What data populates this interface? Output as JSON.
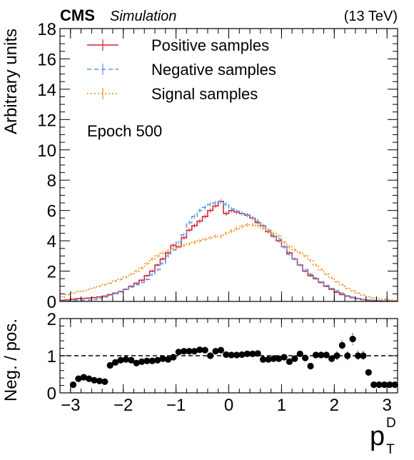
{
  "header": {
    "experiment": "CMS",
    "tag": "Simulation",
    "energy": "(13 TeV)"
  },
  "annotation": "Epoch 500",
  "colors": {
    "positive": "#d62435",
    "negative": "#5b95e0",
    "signal": "#f08a12",
    "ratio_points": "#000000",
    "ratio_errors": "#5b95e0"
  },
  "chart_data": [
    {
      "type": "line",
      "style": "step-histogram",
      "ylabel": "Arbitrary units",
      "xlim": [
        -3.2,
        3.2
      ],
      "ylim": [
        0,
        18
      ],
      "yticks": [
        "0",
        "2",
        "4",
        "6",
        "8",
        "10",
        "12",
        "14",
        "16",
        "18"
      ],
      "bin_edges": [
        -3.2,
        -3.1,
        -3.0,
        -2.9,
        -2.8,
        -2.7,
        -2.6,
        -2.5,
        -2.4,
        -2.3,
        -2.2,
        -2.1,
        -2.0,
        -1.9,
        -1.8,
        -1.7,
        -1.6,
        -1.5,
        -1.4,
        -1.3,
        -1.2,
        -1.1,
        -1.0,
        -0.9,
        -0.8,
        -0.7,
        -0.6,
        -0.5,
        -0.4,
        -0.3,
        -0.2,
        -0.1,
        0.0,
        0.1,
        0.2,
        0.3,
        0.4,
        0.5,
        0.6,
        0.7,
        0.8,
        0.9,
        1.0,
        1.1,
        1.2,
        1.3,
        1.4,
        1.5,
        1.6,
        1.7,
        1.8,
        1.9,
        2.0,
        2.1,
        2.2,
        2.3,
        2.4,
        2.5,
        2.6,
        2.7,
        2.8,
        2.9,
        3.0,
        3.1,
        3.2
      ],
      "legend_position": "top-left",
      "series": [
        {
          "name": "Positive samples",
          "color": "#d62435",
          "dash": "solid",
          "values": [
            0.08,
            0.1,
            0.15,
            0.18,
            0.2,
            0.22,
            0.25,
            0.3,
            0.35,
            0.45,
            0.55,
            0.65,
            0.8,
            1.0,
            1.2,
            1.4,
            1.7,
            2.0,
            2.4,
            2.8,
            3.2,
            3.7,
            3.6,
            4.2,
            4.7,
            5.0,
            5.3,
            5.6,
            6.0,
            6.3,
            6.6,
            5.8,
            6.0,
            5.9,
            5.8,
            5.7,
            5.5,
            5.2,
            5.0,
            4.6,
            4.3,
            4.0,
            3.6,
            3.2,
            2.8,
            2.4,
            2.0,
            1.7,
            1.5,
            1.25,
            1.0,
            0.8,
            0.6,
            0.45,
            0.35,
            0.25,
            0.18,
            0.12,
            0.08,
            0.06,
            0.04,
            0.03,
            0.02,
            0.02
          ]
        },
        {
          "name": "Negative samples",
          "color": "#5b95e0",
          "dash": "dashed",
          "values": [
            0.03,
            0.05,
            0.06,
            0.07,
            0.08,
            0.09,
            0.12,
            0.2,
            0.28,
            0.38,
            0.5,
            0.62,
            0.8,
            0.95,
            1.1,
            1.25,
            1.45,
            1.75,
            2.1,
            2.5,
            3.0,
            3.4,
            3.9,
            4.4,
            5.2,
            5.6,
            6.0,
            6.2,
            6.4,
            6.5,
            6.6,
            6.4,
            6.1,
            5.95,
            5.8,
            5.7,
            5.5,
            5.3,
            5.0,
            4.7,
            4.4,
            4.1,
            3.6,
            3.1,
            2.8,
            2.4,
            2.1,
            1.8,
            1.55,
            1.3,
            1.05,
            0.85,
            0.7,
            0.55,
            0.38,
            0.28,
            0.2,
            0.14,
            0.1,
            0.07,
            0.05,
            0.03,
            0.02,
            0.01
          ]
        },
        {
          "name": "Signal samples",
          "color": "#f08a12",
          "dash": "dotted",
          "values": [
            0.3,
            0.45,
            0.55,
            0.65,
            0.7,
            0.8,
            0.9,
            1.0,
            1.1,
            1.2,
            1.35,
            1.45,
            1.6,
            1.8,
            2.0,
            2.2,
            2.5,
            2.8,
            3.0,
            3.2,
            3.35,
            3.5,
            3.6,
            3.7,
            3.8,
            3.9,
            4.0,
            4.1,
            4.2,
            4.3,
            4.3,
            4.5,
            4.65,
            4.8,
            4.95,
            5.05,
            5.05,
            5.0,
            4.85,
            4.7,
            4.5,
            4.3,
            3.9,
            3.6,
            3.4,
            3.2,
            3.0,
            2.7,
            2.4,
            2.1,
            1.8,
            1.55,
            1.3,
            1.1,
            0.85,
            0.7,
            0.55,
            0.42,
            0.3,
            0.22,
            0.18,
            0.14,
            0.1,
            0.08
          ]
        }
      ]
    },
    {
      "type": "scatter",
      "xlabel": "p",
      "xlabel_sup": "D",
      "xlabel_sub": "T",
      "ylabel": "Neg. / pos.",
      "xlim": [
        -3.2,
        3.2
      ],
      "ylim": [
        0,
        2
      ],
      "yticks": [
        "0",
        "1",
        "2"
      ],
      "xticks": [
        "−3",
        "−2",
        "−1",
        "0",
        "1",
        "2",
        "3"
      ],
      "reference_line": 1,
      "x": [
        -2.95,
        -2.85,
        -2.75,
        -2.65,
        -2.55,
        -2.45,
        -2.35,
        -2.25,
        -2.15,
        -2.05,
        -1.95,
        -1.85,
        -1.75,
        -1.65,
        -1.55,
        -1.45,
        -1.35,
        -1.25,
        -1.15,
        -1.05,
        -0.95,
        -0.85,
        -0.75,
        -0.65,
        -0.55,
        -0.45,
        -0.35,
        -0.25,
        -0.15,
        -0.05,
        0.05,
        0.15,
        0.25,
        0.35,
        0.45,
        0.55,
        0.65,
        0.75,
        0.85,
        0.95,
        1.05,
        1.15,
        1.25,
        1.35,
        1.45,
        1.55,
        1.65,
        1.75,
        1.85,
        1.95,
        2.05,
        2.15,
        2.25,
        2.35,
        2.45,
        2.55,
        2.65,
        2.75,
        2.85,
        2.95,
        3.05,
        3.15
      ],
      "values": [
        0.22,
        0.38,
        0.42,
        0.38,
        0.34,
        0.32,
        0.3,
        0.74,
        0.82,
        0.88,
        0.9,
        0.88,
        0.8,
        0.84,
        0.86,
        0.86,
        0.88,
        0.92,
        0.9,
        0.96,
        1.1,
        1.12,
        1.12,
        1.12,
        1.16,
        1.15,
        1.0,
        1.12,
        1.15,
        1.03,
        1.02,
        1.02,
        1.03,
        1.05,
        1.05,
        1.06,
        0.9,
        0.9,
        0.92,
        0.92,
        0.96,
        0.84,
        0.92,
        1.05,
        0.94,
        0.72,
        1.02,
        1.02,
        1.02,
        0.92,
        1.0,
        1.28,
        1.0,
        1.45,
        1.0,
        1.0,
        0.55,
        0.22,
        0.22,
        0.22,
        0.22,
        0.22
      ],
      "errors": [
        0.06,
        0.06,
        0.05,
        0.05,
        0.05,
        0.05,
        0.05,
        0.05,
        0.04,
        0.04,
        0.04,
        0.03,
        0.03,
        0.03,
        0.03,
        0.03,
        0.03,
        0.03,
        0.03,
        0.03,
        0.03,
        0.03,
        0.03,
        0.03,
        0.03,
        0.03,
        0.03,
        0.03,
        0.03,
        0.03,
        0.03,
        0.03,
        0.03,
        0.03,
        0.03,
        0.03,
        0.03,
        0.03,
        0.03,
        0.03,
        0.04,
        0.04,
        0.04,
        0.05,
        0.05,
        0.05,
        0.06,
        0.07,
        0.08,
        0.1,
        0.12,
        0.14,
        0.12,
        0.16,
        0.14,
        0.14,
        0.08,
        0.06,
        0.06,
        0.06,
        0.06,
        0.06
      ]
    }
  ]
}
